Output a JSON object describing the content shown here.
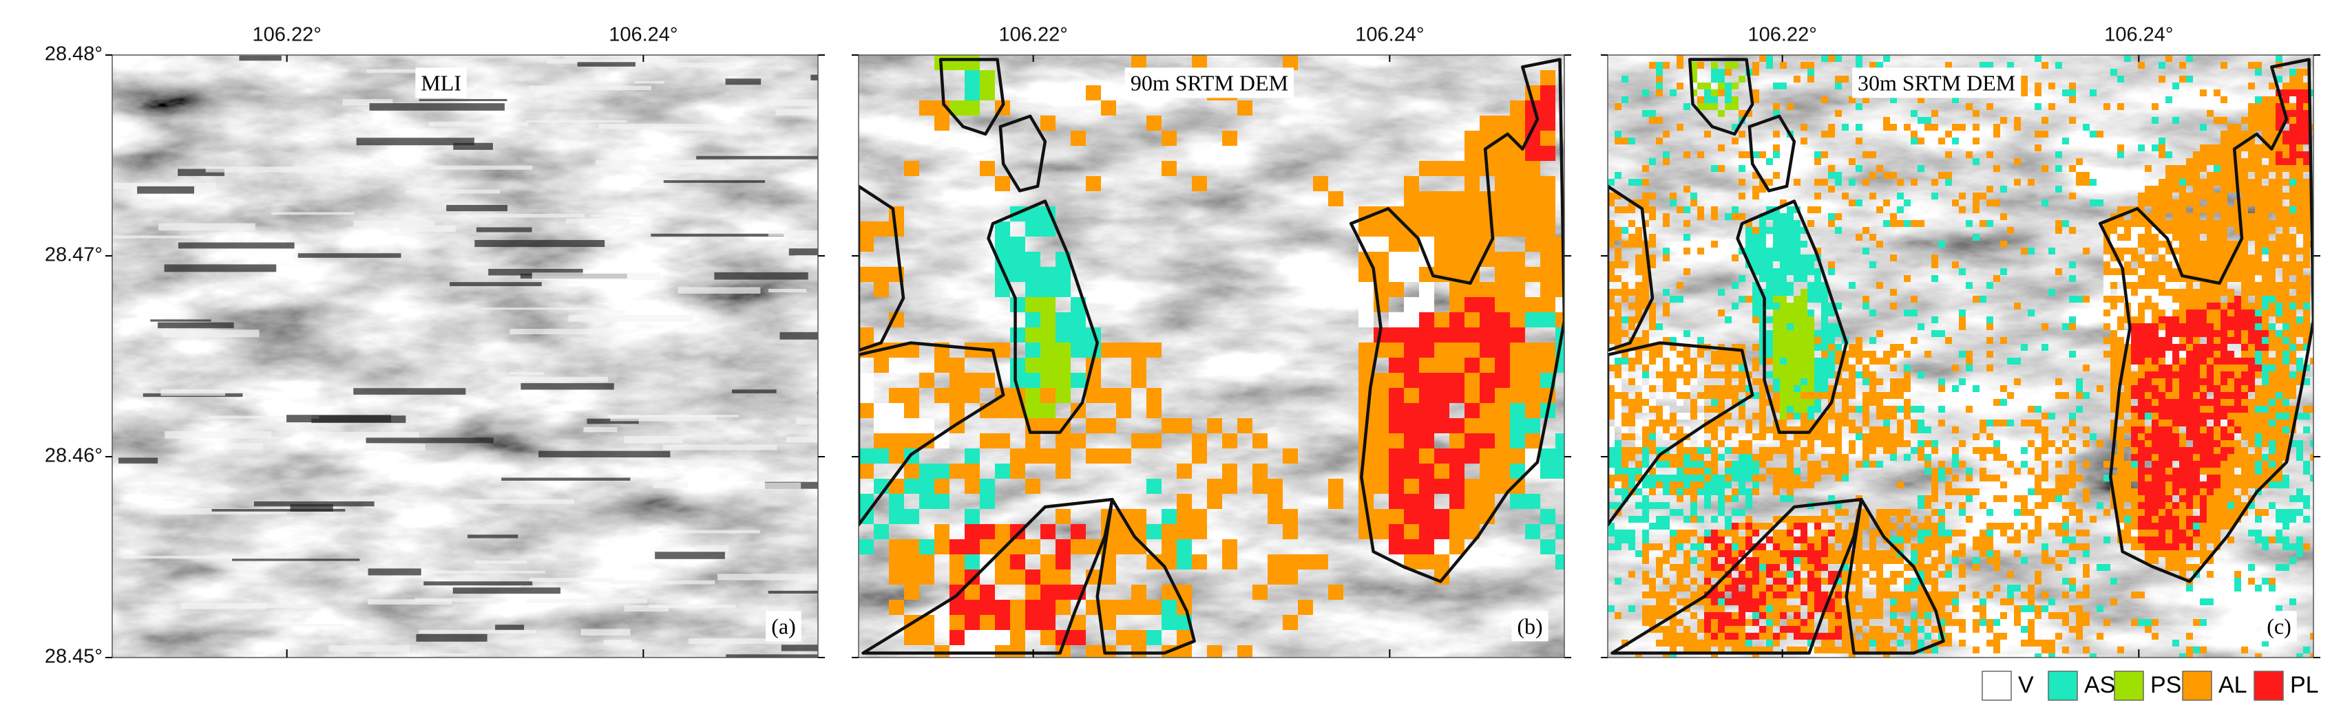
{
  "map": {
    "x_axis": {
      "lim": [
        106.2102,
        106.2498
      ],
      "ticks": [
        {
          "value": 106.22,
          "label": "106.22°"
        },
        {
          "value": 106.24,
          "label": "106.24°"
        }
      ]
    },
    "y_axis": {
      "lim": [
        28.45,
        28.48
      ],
      "ticks": [
        {
          "value": 28.48,
          "label": "28.48°"
        },
        {
          "value": 28.47,
          "label": "28.47°"
        },
        {
          "value": 28.46,
          "label": "28.46°"
        },
        {
          "value": 28.45,
          "label": "28.45°"
        }
      ]
    },
    "panels": [
      {
        "title": "MLI",
        "letter": "(a)"
      },
      {
        "title": "90m SRTM DEM",
        "letter": "(b)"
      },
      {
        "title": "30m SRTM DEM",
        "letter": "(c)"
      }
    ],
    "legend": [
      {
        "label": "V",
        "color": "#ffffff"
      },
      {
        "label": "AS",
        "color": "#1ee8c0"
      },
      {
        "label": "PS",
        "color": "#a0e000"
      },
      {
        "label": "AL",
        "color": "#ff9a00"
      },
      {
        "label": "PL",
        "color": "#ff1a1a"
      }
    ]
  }
}
